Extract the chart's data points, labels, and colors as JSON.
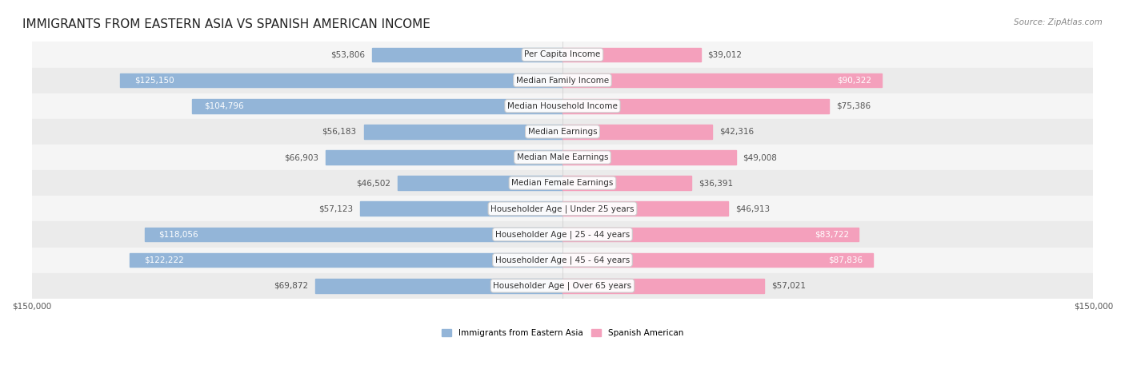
{
  "title": "IMMIGRANTS FROM EASTERN ASIA VS SPANISH AMERICAN INCOME",
  "source": "Source: ZipAtlas.com",
  "categories": [
    "Per Capita Income",
    "Median Family Income",
    "Median Household Income",
    "Median Earnings",
    "Median Male Earnings",
    "Median Female Earnings",
    "Householder Age | Under 25 years",
    "Householder Age | 25 - 44 years",
    "Householder Age | 45 - 64 years",
    "Householder Age | Over 65 years"
  ],
  "eastern_asia": [
    53806,
    125150,
    104796,
    56183,
    66903,
    46502,
    57123,
    118056,
    122222,
    69872
  ],
  "spanish_american": [
    39012,
    90322,
    75386,
    42316,
    49008,
    36391,
    46913,
    83722,
    87836,
    57021
  ],
  "eastern_asia_color": "#93b5d8",
  "eastern_asia_color_dark": "#6a9ec7",
  "spanish_american_color": "#f4a0bc",
  "spanish_american_color_dark": "#e8729a",
  "max_val": 150000,
  "bar_height": 0.55,
  "row_bg_light": "#f5f5f5",
  "row_bg_dark": "#ebebeb",
  "grid_color": "#cccccc",
  "label_fontsize": 7.5,
  "title_fontsize": 11,
  "source_fontsize": 7.5
}
